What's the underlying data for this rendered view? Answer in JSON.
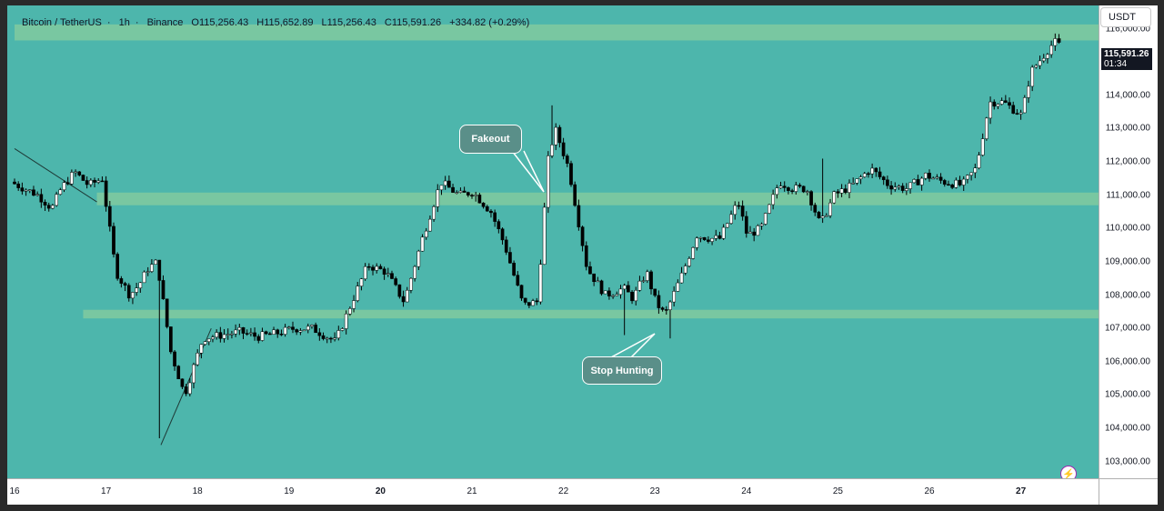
{
  "header": {
    "symbol": "Bitcoin / TetherUS",
    "interval": "1h",
    "exchange": "Binance",
    "open": "O115,256.43",
    "high": "H115,652.89",
    "low": "L115,256.43",
    "close": "C115,591.26",
    "change": "+334.82 (+0.29%)"
  },
  "currency_button": "USDT",
  "last_price": {
    "price": "115,591.26",
    "countdown": "01:34"
  },
  "annotations": {
    "fakeout": "Fakeout",
    "stop_hunting": "Stop Hunting"
  },
  "colors": {
    "background": "#4db6ac",
    "zone": "#7ec9a0",
    "candle_up": "#ffffff",
    "candle_down": "#000000",
    "callout": "#5a8f89"
  },
  "icons": {
    "bolt": "lightning-icon"
  },
  "chart_data": {
    "type": "candlestick",
    "title": "",
    "ylim": [
      102500,
      116700
    ],
    "price_ticks": [
      "116,000.00",
      "115,000.00",
      "114,000.00",
      "113,000.00",
      "112,000.00",
      "111,000.00",
      "110,000.00",
      "109,000.00",
      "108,000.00",
      "107,000.00",
      "106,000.00",
      "105,000.00",
      "104,000.00",
      "103,000.00"
    ],
    "time_ticks": [
      {
        "label": "16",
        "day": 16,
        "bold": false
      },
      {
        "label": "17",
        "day": 17,
        "bold": false
      },
      {
        "label": "18",
        "day": 18,
        "bold": false
      },
      {
        "label": "19",
        "day": 19,
        "bold": false
      },
      {
        "label": "20",
        "day": 20,
        "bold": true
      },
      {
        "label": "21",
        "day": 21,
        "bold": false
      },
      {
        "label": "22",
        "day": 22,
        "bold": false
      },
      {
        "label": "23",
        "day": 23,
        "bold": false
      },
      {
        "label": "24",
        "day": 24,
        "bold": false
      },
      {
        "label": "25",
        "day": 25,
        "bold": false
      },
      {
        "label": "26",
        "day": 26,
        "bold": false
      },
      {
        "label": "27",
        "day": 27,
        "bold": true
      }
    ],
    "zones": [
      {
        "from": 115650,
        "to": 116130,
        "start_day": 16.0
      },
      {
        "from": 110700,
        "to": 111080,
        "start_day": 16.9
      },
      {
        "from": 107300,
        "to": 107560,
        "start_day": 16.75
      }
    ],
    "trendlines": [
      {
        "from": {
          "day": 16.0,
          "price": 112400
        },
        "to": {
          "day": 16.9,
          "price": 110800
        }
      },
      {
        "from": {
          "day": 17.6,
          "price": 103500
        },
        "to": {
          "day": 18.15,
          "price": 107000
        }
      }
    ],
    "series_anchor_days": [
      16.0,
      16.3,
      16.45,
      16.55,
      16.7,
      16.85,
      17.0,
      17.15,
      17.3,
      17.4,
      17.5,
      17.6,
      17.75,
      17.9,
      18.1,
      18.3,
      18.5,
      18.7,
      18.9,
      19.1,
      19.3,
      19.55,
      19.7,
      19.9,
      20.1,
      20.3,
      20.5,
      20.7,
      20.9,
      21.05,
      21.25,
      21.4,
      21.6,
      21.75,
      21.8,
      21.87,
      21.95,
      22.1,
      22.3,
      22.5,
      22.7,
      22.8,
      22.95,
      23.05,
      23.15,
      23.35,
      23.5,
      23.65,
      23.75,
      23.95,
      24.05,
      24.2,
      24.4,
      24.55,
      24.7,
      24.85,
      25.0,
      25.2,
      25.4,
      25.6,
      25.8,
      26.0,
      26.2,
      26.4,
      26.55,
      26.7,
      26.85,
      27.05,
      27.15,
      27.4
    ],
    "series_anchor_prices": [
      111400,
      111000,
      110600,
      111200,
      111700,
      111300,
      111500,
      108700,
      108000,
      108300,
      108800,
      109000,
      106300,
      105000,
      106700,
      106800,
      106900,
      106750,
      106850,
      107000,
      107000,
      106600,
      107600,
      108900,
      108700,
      107800,
      109700,
      111400,
      111000,
      111100,
      110500,
      109500,
      107700,
      107800,
      109300,
      112000,
      113000,
      111800,
      108800,
      108000,
      108200,
      107900,
      108700,
      107800,
      107400,
      108700,
      109800,
      109700,
      109700,
      110800,
      109800,
      110000,
      111400,
      111200,
      111200,
      110100,
      111000,
      111300,
      111800,
      111300,
      111200,
      111600,
      111400,
      111300,
      111800,
      113800,
      113800,
      113400,
      114700,
      115591
    ]
  }
}
